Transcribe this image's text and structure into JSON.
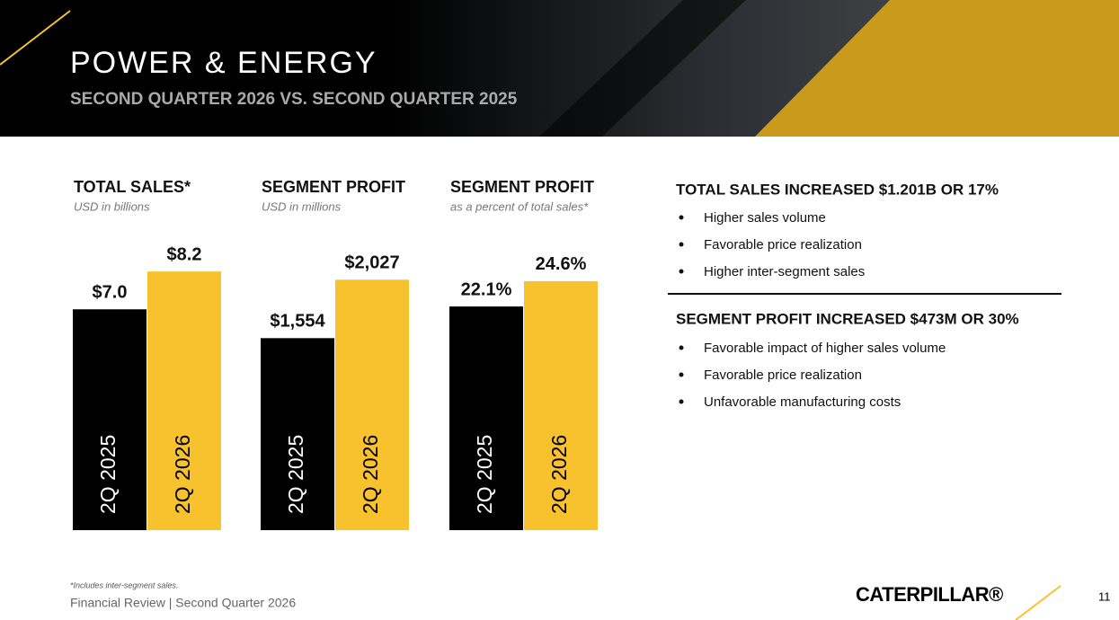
{
  "header": {
    "title": "POWER & ENERGY",
    "subtitle": "SECOND QUARTER 2026 VS. SECOND QUARTER 2025"
  },
  "chart_data": [
    {
      "type": "bar",
      "title": "TOTAL SALES*",
      "subtitle": "USD in billions",
      "categories": [
        "2Q 2025",
        "2Q 2026"
      ],
      "values": [
        7.0,
        8.2
      ],
      "value_labels": [
        "$7.0",
        "$8.2"
      ],
      "colors": [
        "#000000",
        "#f8c22e"
      ],
      "ylim": [
        0,
        9.4
      ]
    },
    {
      "type": "bar",
      "title": "SEGMENT PROFIT",
      "subtitle": "USD in millions",
      "categories": [
        "2Q 2025",
        "2Q 2026"
      ],
      "values": [
        1554,
        2027
      ],
      "value_labels": [
        "$1,554",
        "$2,027"
      ],
      "colors": [
        "#000000",
        "#f8c22e"
      ],
      "ylim": [
        0,
        2400
      ]
    },
    {
      "type": "bar",
      "title": "SEGMENT PROFIT",
      "subtitle": "as a percent of total sales*",
      "categories": [
        "2Q 2025",
        "2Q 2026"
      ],
      "values": [
        22.1,
        24.6
      ],
      "value_labels": [
        "22.1%",
        "24.6%"
      ],
      "colors": [
        "#000000",
        "#f8c22e"
      ],
      "ylim": [
        0,
        29.3
      ]
    }
  ],
  "highlights": [
    {
      "heading": "TOTAL SALES INCREASED $1.201B OR 17%",
      "bullets": [
        "Higher sales volume",
        "Favorable price realization",
        "Higher inter-segment sales"
      ]
    },
    {
      "heading": "SEGMENT PROFIT INCREASED $473M OR 30%",
      "bullets": [
        "Favorable impact of higher sales volume",
        "Favorable price realization",
        "Unfavorable manufacturing costs"
      ]
    }
  ],
  "footer": {
    "note": "*Includes inter-segment sales.",
    "text": "Financial Review | Second Quarter 2026",
    "logo": "CATERPILLAR®",
    "page": "11"
  }
}
